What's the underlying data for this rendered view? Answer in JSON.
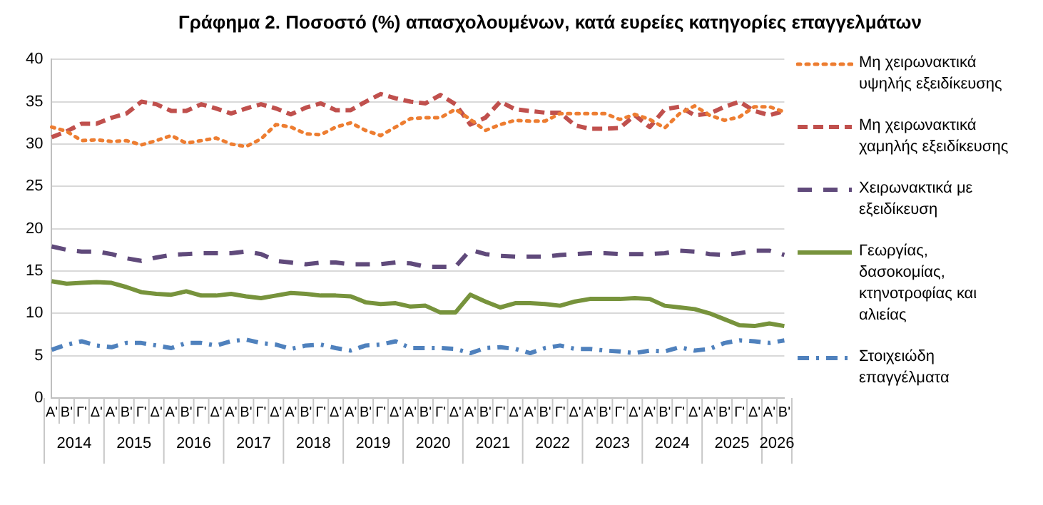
{
  "chart_data": {
    "type": "line",
    "title": "Γράφημα 2. Ποσοστό (%) απασχολουμένων, κατά ευρείες κατηγορίες επαγγελμάτων",
    "categories": [
      "Α'",
      "Β'",
      "Γ'",
      "Δ'",
      "Α'",
      "Β'",
      "Γ'",
      "Δ'",
      "Α'",
      "Β'",
      "Γ'",
      "Δ'",
      "Α'",
      "Β'",
      "Γ'",
      "Δ'",
      "Α'",
      "Β'",
      "Γ'",
      "Δ'",
      "Α'",
      "Β'",
      "Γ'",
      "Δ'",
      "Α'",
      "Β'",
      "Γ'",
      "Δ'",
      "Α'",
      "Β'",
      "Γ'",
      "Δ'",
      "Α'",
      "Β'",
      "Γ'",
      "Δ'",
      "Α'",
      "Β'",
      "Γ'",
      "Δ'",
      "Α'",
      "Β'",
      "Γ'",
      "Δ'",
      "Α'",
      "Β'",
      "Γ'",
      "Δ'",
      "Α'",
      "Β'"
    ],
    "annotations": [
      "2014",
      "2015",
      "2016",
      "2017",
      "2018",
      "2019",
      "2020",
      "2021",
      "2022",
      "2023",
      "2024",
      "2025",
      "2026"
    ],
    "series": [
      {
        "name": "Μη χειρωνακτικά υψηλής εξειδίκευσης",
        "color": "#ed7d31",
        "line_style": "dotted",
        "values": [
          32.0,
          31.5,
          30.4,
          30.5,
          30.3,
          30.4,
          29.9,
          30.4,
          31.0,
          30.1,
          30.4,
          30.7,
          30.0,
          29.7,
          30.6,
          32.3,
          32.0,
          31.2,
          31.1,
          32.0,
          32.5,
          31.6,
          31.0,
          32.0,
          33.0,
          33.1,
          33.1,
          34.1,
          32.9,
          31.6,
          32.3,
          32.8,
          32.7,
          32.7,
          33.6,
          33.6,
          33.6,
          33.6,
          32.9,
          33.5,
          32.9,
          31.9,
          33.6,
          34.5,
          33.4,
          32.8,
          33.2,
          34.4,
          34.4,
          33.8
        ]
      },
      {
        "name": "Μη χειρωνακτικά χαμηλής εξειδίκευσης",
        "color": "#c0504d",
        "line_style": "dashed",
        "values": [
          30.8,
          31.5,
          32.4,
          32.4,
          33.1,
          33.6,
          35.0,
          34.7,
          33.9,
          33.9,
          34.7,
          34.2,
          33.6,
          34.2,
          34.7,
          34.2,
          33.5,
          34.3,
          34.8,
          34.0,
          34.0,
          35.0,
          35.9,
          35.4,
          35.0,
          34.8,
          35.8,
          34.7,
          32.3,
          33.1,
          35.0,
          34.1,
          33.9,
          33.7,
          33.7,
          32.2,
          31.8,
          31.8,
          31.9,
          33.4,
          32.0,
          34.1,
          34.4,
          33.4,
          33.6,
          34.4,
          35.0,
          33.9,
          33.4,
          33.9
        ]
      },
      {
        "name": "Χειρωνακτικά με εξειδίκευση",
        "color": "#604a7b",
        "line_style": "dashed",
        "values": [
          17.9,
          17.5,
          17.3,
          17.3,
          17.0,
          16.5,
          16.2,
          16.6,
          16.9,
          17.0,
          17.1,
          17.1,
          17.1,
          17.3,
          17.0,
          16.2,
          16.0,
          15.8,
          16.0,
          16.0,
          15.8,
          15.8,
          15.8,
          16.0,
          15.9,
          15.5,
          15.5,
          15.5,
          17.5,
          17.0,
          16.8,
          16.7,
          16.7,
          16.7,
          16.9,
          17.0,
          17.1,
          17.1,
          17.0,
          17.0,
          17.0,
          17.1,
          17.4,
          17.3,
          17.0,
          16.9,
          17.1,
          17.4,
          17.4,
          16.9
        ]
      },
      {
        "name": "Γεωργίας, δασοκομίας, κτηνοτροφίας και αλιείας",
        "color": "#77933c",
        "line_style": "solid",
        "values": [
          13.8,
          13.5,
          13.6,
          13.7,
          13.6,
          13.1,
          12.5,
          12.3,
          12.2,
          12.6,
          12.1,
          12.1,
          12.3,
          12.0,
          11.8,
          12.1,
          12.4,
          12.3,
          12.1,
          12.1,
          12.0,
          11.3,
          11.1,
          11.2,
          10.8,
          10.9,
          10.1,
          10.1,
          12.2,
          11.4,
          10.7,
          11.2,
          11.2,
          11.1,
          10.9,
          11.4,
          11.7,
          11.7,
          11.7,
          11.8,
          11.7,
          10.9,
          10.7,
          10.5,
          10.0,
          9.3,
          8.6,
          8.5,
          8.8,
          8.5
        ]
      },
      {
        "name": "Στοιχειώδη επαγγέλματα",
        "color": "#4f81bd",
        "line_style": "dashed",
        "values": [
          5.7,
          6.3,
          6.7,
          6.2,
          6.0,
          6.5,
          6.5,
          6.2,
          5.9,
          6.5,
          6.5,
          6.2,
          6.7,
          6.9,
          6.5,
          6.3,
          5.8,
          6.2,
          6.3,
          5.9,
          5.6,
          6.2,
          6.3,
          6.7,
          5.9,
          5.9,
          5.9,
          5.8,
          5.3,
          5.9,
          6.0,
          5.8,
          5.3,
          5.9,
          6.2,
          5.8,
          5.8,
          5.6,
          5.5,
          5.3,
          5.6,
          5.5,
          6.0,
          5.6,
          5.8,
          6.5,
          6.8,
          6.7,
          6.5,
          6.8
        ]
      }
    ],
    "ylim": [
      0,
      40
    ],
    "yticks": [
      0,
      5,
      10,
      15,
      20,
      25,
      30,
      35,
      40
    ],
    "grid": "y",
    "legend": "right",
    "marker": "none"
  }
}
